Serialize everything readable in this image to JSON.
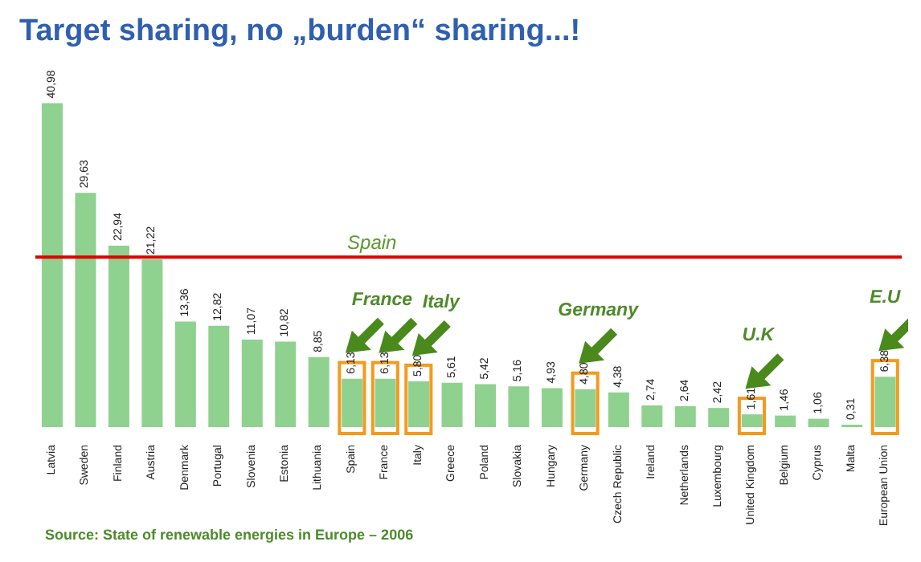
{
  "chart_data": {
    "type": "bar",
    "title": "Target sharing, no „burden“ sharing...!",
    "categories": [
      "Latvia",
      "Sweden",
      "Finland",
      "Austria",
      "Denmark",
      "Portugal",
      "Slovenia",
      "Estonia",
      "Lithuania",
      "Spain",
      "France",
      "Italy",
      "Greece",
      "Poland",
      "Slovakia",
      "Hungary",
      "Germany",
      "Czech Republic",
      "Ireland",
      "Netherlands",
      "Luxembourg",
      "United Kingdom",
      "Belgium",
      "Cyprus",
      "Malta",
      "European Union"
    ],
    "values": [
      40.98,
      29.63,
      22.94,
      21.22,
      13.36,
      12.82,
      11.07,
      10.82,
      8.85,
      6.13,
      6.13,
      5.8,
      5.61,
      5.42,
      5.16,
      4.93,
      4.8,
      4.38,
      2.74,
      2.64,
      2.42,
      1.61,
      1.46,
      1.06,
      0.31,
      6.38
    ],
    "value_labels": [
      "40,98",
      "29,63",
      "22,94",
      "21,22",
      "13,36",
      "12,82",
      "11,07",
      "10,82",
      "8,85",
      "6,13",
      "6,13",
      "5,80",
      "5,61",
      "5,42",
      "5,16",
      "4,93",
      "4,80",
      "4,38",
      "2,74",
      "2,64",
      "2,42",
      "1,61",
      "1,46",
      "1,06",
      "0,31",
      "6,38"
    ],
    "color": "#8fd18f",
    "tick_labels": "x",
    "grid": false,
    "legend": false,
    "ref_lines": [
      {
        "axis": "y",
        "value": 21.5,
        "color": "#e00000",
        "label": "Spain"
      }
    ],
    "annotations": [
      "France",
      "Italy",
      "Germany",
      "U.K",
      "E.U",
      "Source: State of renewable energies in Europe – 2006"
    ]
  }
}
